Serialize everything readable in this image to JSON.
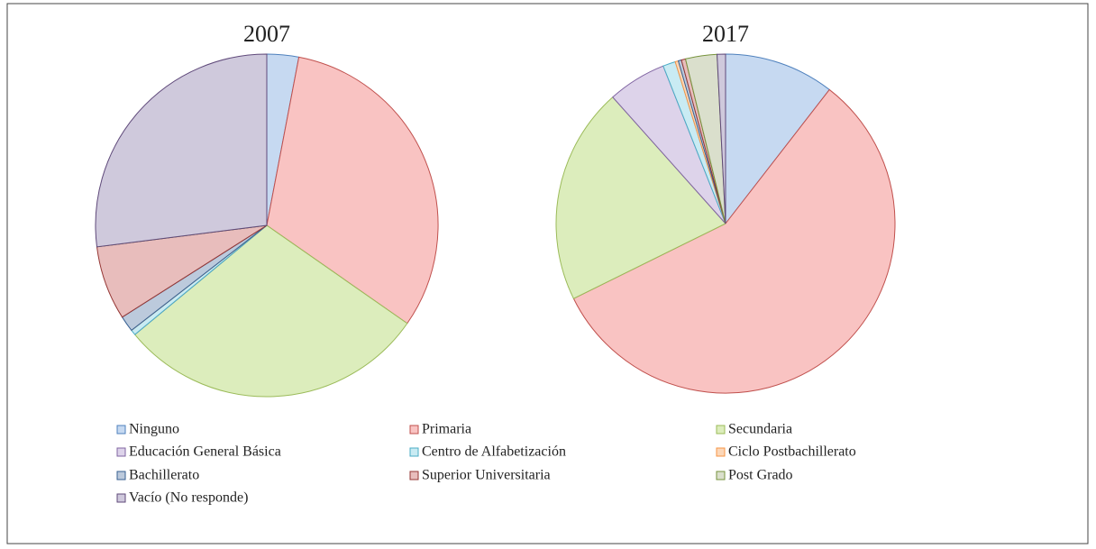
{
  "chart_data": [
    {
      "type": "pie",
      "title": "2007",
      "values": [
        3,
        31.7,
        29.3,
        0,
        0.5,
        0,
        1.5,
        7,
        0,
        27
      ]
    },
    {
      "type": "pie",
      "title": "2017",
      "values": [
        10.5,
        57.2,
        20.7,
        5.6,
        1.2,
        0.3,
        0.3,
        0.4,
        3.0,
        0.8
      ]
    }
  ],
  "legend": {
    "categories": [
      "Ninguno",
      "Primaria",
      "Secundaria",
      "Educación General Básica",
      "Centro de Alfabetización",
      "Ciclo Postbachillerato",
      "Bachillerato",
      "Superior Universitaria",
      "Post Grado",
      "Vacío (No responde)"
    ],
    "colors": [
      "#c6d9f1",
      "#f9c3c2",
      "#dcedbc",
      "#ddd3ea",
      "#c9ebf3",
      "#fcd7b8",
      "#bccadc",
      "#e8bdbc",
      "#dadfcc",
      "#cfc9dc"
    ],
    "border_colors": [
      "#4f81bd",
      "#c0504d",
      "#9bbb59",
      "#8064a2",
      "#4bacc6",
      "#f79646",
      "#376092",
      "#953735",
      "#77933c",
      "#5f497a"
    ]
  }
}
